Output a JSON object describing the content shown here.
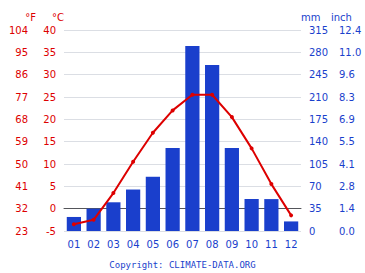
{
  "chart_data": {
    "type": "bar",
    "categories": [
      "01",
      "02",
      "03",
      "04",
      "05",
      "06",
      "07",
      "08",
      "09",
      "10",
      "11",
      "12"
    ],
    "series": [
      {
        "type": "bar",
        "color": "#1a3fcc",
        "axis": "y2",
        "values": [
          22,
          35,
          45,
          65,
          85,
          130,
          290,
          260,
          130,
          50,
          50,
          15
        ]
      },
      {
        "type": "line",
        "color": "#dd0000",
        "marker": "circle",
        "axis": "y",
        "values": [
          -3.5,
          -2.5,
          3.5,
          10.5,
          17.0,
          22.0,
          25.5,
          25.5,
          20.5,
          13.5,
          5.5,
          -1.5
        ]
      }
    ],
    "ylabel": "°C",
    "ylim": [
      -5,
      40
    ],
    "yticks": [
      -5,
      0,
      5,
      10,
      15,
      20,
      25,
      30,
      35,
      40
    ],
    "y3label": "°F",
    "y3lim": [
      -5,
      40
    ],
    "y3ticks": [
      {
        "value": -5,
        "label": "23"
      },
      {
        "value": 0,
        "label": "32"
      },
      {
        "value": 5,
        "label": "41"
      },
      {
        "value": 10,
        "label": "50"
      },
      {
        "value": 15,
        "label": "59"
      },
      {
        "value": 20,
        "label": "68"
      },
      {
        "value": 25,
        "label": "77"
      },
      {
        "value": 30,
        "label": "86"
      },
      {
        "value": 35,
        "label": "95"
      },
      {
        "value": 40,
        "label": "104"
      }
    ],
    "y2label": "mm",
    "y2lim": [
      0,
      315
    ],
    "y2ticks": [
      0,
      35,
      70,
      105,
      140,
      175,
      210,
      245,
      280,
      315
    ],
    "y4label": "inch",
    "y4lim": [
      0,
      315
    ],
    "y4ticks": [
      {
        "value": 0,
        "label": "0.0"
      },
      {
        "value": 35,
        "label": "1.4"
      },
      {
        "value": 70,
        "label": "2.8"
      },
      {
        "value": 105,
        "label": "4.1"
      },
      {
        "value": 140,
        "label": "5.5"
      },
      {
        "value": 175,
        "label": "6.9"
      },
      {
        "value": 210,
        "label": "8.3"
      },
      {
        "value": 245,
        "label": "9.6"
      },
      {
        "value": 280,
        "label": "11.0"
      },
      {
        "value": 315,
        "label": "12.4"
      }
    ],
    "annotation": "Copyright: CLIMATE-DATA.ORG",
    "grid": true
  }
}
